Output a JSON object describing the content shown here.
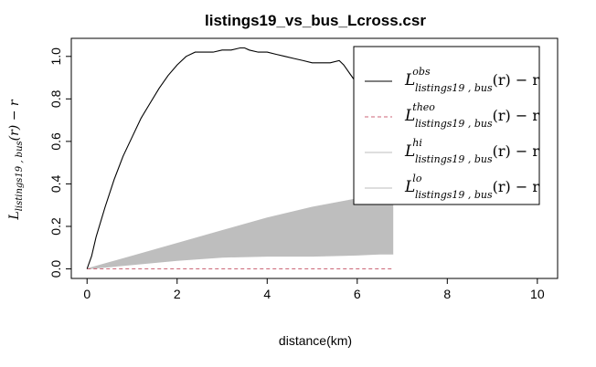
{
  "chart_data": {
    "type": "line",
    "title": "listings19_vs_bus_Lcross.csr",
    "xlabel": "distance(km)",
    "ylabel": {
      "main": "L",
      "sub": "listings19 , bus",
      "tail": "(r) − r"
    },
    "xlim": [
      0,
      10
    ],
    "ylim": [
      0,
      1.05
    ],
    "x_ticks": [
      "0",
      "2",
      "4",
      "6",
      "8",
      "10"
    ],
    "y_ticks": [
      "0.0",
      "0.2",
      "0.4",
      "0.6",
      "0.8",
      "1.0"
    ],
    "grid": false,
    "legend_position": "top-right",
    "series": [
      {
        "name": "obs",
        "color": "#000000",
        "style": "solid",
        "x": [
          0,
          0.1,
          0.2,
          0.4,
          0.6,
          0.8,
          1.0,
          1.2,
          1.4,
          1.6,
          1.8,
          2.0,
          2.2,
          2.4,
          2.6,
          2.8,
          3.0,
          3.2,
          3.4,
          3.5,
          3.6,
          3.8,
          4.0,
          4.2,
          4.4,
          4.6,
          4.8,
          5.0,
          5.2,
          5.4,
          5.6,
          5.7,
          5.8,
          6.0,
          6.2,
          6.4,
          6.5,
          6.6,
          6.7,
          6.75
        ],
        "y": [
          0.0,
          0.06,
          0.15,
          0.29,
          0.42,
          0.53,
          0.62,
          0.71,
          0.78,
          0.85,
          0.91,
          0.96,
          1.0,
          1.02,
          1.02,
          1.02,
          1.03,
          1.03,
          1.04,
          1.04,
          1.03,
          1.02,
          1.02,
          1.01,
          1.0,
          0.99,
          0.98,
          0.97,
          0.97,
          0.97,
          0.98,
          0.96,
          0.93,
          0.87,
          0.8,
          0.74,
          0.71,
          0.68,
          0.62,
          0.57
        ]
      },
      {
        "name": "theo",
        "color": "#cc6677",
        "style": "dashed",
        "x": [
          0,
          6.8
        ],
        "y": [
          0,
          0
        ]
      },
      {
        "name": "hi",
        "color": "#bebebe",
        "style": "band-upper",
        "x": [
          0,
          0.5,
          1,
          2,
          3,
          4,
          5,
          6,
          6.5,
          6.8
        ],
        "y": [
          0.0,
          0.03,
          0.06,
          0.12,
          0.18,
          0.24,
          0.29,
          0.33,
          0.37,
          0.41
        ]
      },
      {
        "name": "lo",
        "color": "#bebebe",
        "style": "band-lower",
        "x": [
          0,
          0.5,
          1,
          2,
          3,
          4,
          5,
          6,
          6.5,
          6.8
        ],
        "y": [
          0.0,
          0.01,
          0.02,
          0.04,
          0.055,
          0.06,
          0.06,
          0.065,
          0.07,
          0.07
        ]
      }
    ],
    "legend": [
      {
        "key": "obs",
        "sup": "obs",
        "sub": "listings19 , bus",
        "tail": "(r) − r"
      },
      {
        "key": "theo",
        "sup": "theo",
        "sub": "listings19 , bus",
        "tail": "(r) − r"
      },
      {
        "key": "hi",
        "sup": "hi",
        "sub": "listings19 , bus",
        "tail": "(r) − r"
      },
      {
        "key": "lo",
        "sup": "lo",
        "sub": "listings19 , bus",
        "tail": "(r) − r"
      }
    ]
  }
}
